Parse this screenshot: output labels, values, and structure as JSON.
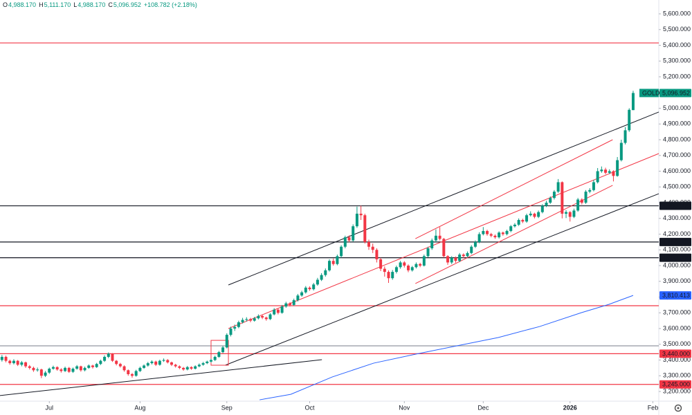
{
  "header": {
    "items": [
      {
        "key": "O",
        "value": "4,988.170"
      },
      {
        "key": "H",
        "value": "5,111.170"
      },
      {
        "key": "L",
        "value": "4,988.170"
      },
      {
        "key": "C",
        "value": "5,096.952"
      }
    ],
    "change": "+108.782 (+2.18%)"
  },
  "chart_data": {
    "type": "candlestick",
    "symbol": "GOLD",
    "up_color": "#089981",
    "down_color": "#f23645",
    "xlim": [
      -0.5,
      166.5
    ],
    "ylim": [
      3138.5,
      5687.9
    ],
    "xticks": [
      {
        "value": 12,
        "label": "Jul"
      },
      {
        "value": 35,
        "label": "Aug"
      },
      {
        "value": 57,
        "label": "Sep"
      },
      {
        "value": 78,
        "label": "Oct"
      },
      {
        "value": 102,
        "label": "Nov"
      },
      {
        "value": 122,
        "label": "Dec"
      },
      {
        "value": 144,
        "label": "2026"
      },
      {
        "value": 165,
        "label": "Feb"
      }
    ],
    "yticks": [
      {
        "value": 3200,
        "label": "3,200.000"
      },
      {
        "value": 3300,
        "label": "3,300.000"
      },
      {
        "value": 3400,
        "label": "3,400.000"
      },
      {
        "value": 3500,
        "label": "3,500.000"
      },
      {
        "value": 3600,
        "label": "3,600.000"
      },
      {
        "value": 3700,
        "label": "3,700.000"
      },
      {
        "value": 3800,
        "label": "3,800.000"
      },
      {
        "value": 3900,
        "label": "3,900.000"
      },
      {
        "value": 4000,
        "label": "4,000.000"
      },
      {
        "value": 4100,
        "label": "4,100.000"
      },
      {
        "value": 4200,
        "label": "4,200.000"
      },
      {
        "value": 4300,
        "label": "4,300.000"
      },
      {
        "value": 4400,
        "label": "4,400.000"
      },
      {
        "value": 4500,
        "label": "4,500.000"
      },
      {
        "value": 4600,
        "label": "4,600.000"
      },
      {
        "value": 4700,
        "label": "4,700.000"
      },
      {
        "value": 4800,
        "label": "4,800.000"
      },
      {
        "value": 4900,
        "label": "4,900.000"
      },
      {
        "value": 5000,
        "label": "5,000.000"
      },
      {
        "value": 5100,
        "label": "5,100.000"
      },
      {
        "value": 5200,
        "label": "5,200.000"
      },
      {
        "value": 5300,
        "label": "5,300.000"
      },
      {
        "value": 5400,
        "label": "5,400.000"
      },
      {
        "value": 5500,
        "label": "5,500.000"
      },
      {
        "value": 5600,
        "label": "5,600.000"
      }
    ],
    "ohlc": [
      [
        3400,
        3432,
        3390,
        3420
      ],
      [
        3420,
        3428,
        3385,
        3395
      ],
      [
        3395,
        3402,
        3370,
        3380
      ],
      [
        3380,
        3405,
        3372,
        3395
      ],
      [
        3395,
        3400,
        3362,
        3370
      ],
      [
        3370,
        3394,
        3360,
        3385
      ],
      [
        3385,
        3390,
        3350,
        3360
      ],
      [
        3360,
        3368,
        3340,
        3350
      ],
      [
        3350,
        3358,
        3325,
        3335
      ],
      [
        3335,
        3352,
        3326,
        3340
      ],
      [
        3340,
        3345,
        3285,
        3300
      ],
      [
        3300,
        3330,
        3292,
        3320
      ],
      [
        3320,
        3352,
        3312,
        3345
      ],
      [
        3345,
        3364,
        3338,
        3355
      ],
      [
        3355,
        3360,
        3332,
        3340
      ],
      [
        3340,
        3348,
        3320,
        3330
      ],
      [
        3330,
        3358,
        3324,
        3350
      ],
      [
        3350,
        3356,
        3318,
        3325
      ],
      [
        3325,
        3352,
        3318,
        3345
      ],
      [
        3345,
        3368,
        3338,
        3360
      ],
      [
        3360,
        3364,
        3326,
        3335
      ],
      [
        3335,
        3358,
        3328,
        3350
      ],
      [
        3350,
        3372,
        3344,
        3365
      ],
      [
        3365,
        3370,
        3346,
        3355
      ],
      [
        3355,
        3382,
        3350,
        3375
      ],
      [
        3375,
        3402,
        3368,
        3395
      ],
      [
        3395,
        3430,
        3388,
        3420
      ],
      [
        3420,
        3448,
        3412,
        3440
      ],
      [
        3440,
        3444,
        3388,
        3395
      ],
      [
        3395,
        3400,
        3366,
        3375
      ],
      [
        3375,
        3382,
        3352,
        3360
      ],
      [
        3360,
        3366,
        3326,
        3335
      ],
      [
        3335,
        3340,
        3300,
        3310
      ],
      [
        3310,
        3318,
        3288,
        3300
      ],
      [
        3300,
        3338,
        3294,
        3330
      ],
      [
        3330,
        3358,
        3324,
        3350
      ],
      [
        3350,
        3372,
        3344,
        3365
      ],
      [
        3365,
        3388,
        3358,
        3380
      ],
      [
        3380,
        3398,
        3372,
        3390
      ],
      [
        3390,
        3396,
        3362,
        3370
      ],
      [
        3370,
        3402,
        3364,
        3395
      ],
      [
        3395,
        3410,
        3388,
        3400
      ],
      [
        3400,
        3406,
        3378,
        3385
      ],
      [
        3385,
        3390,
        3362,
        3370
      ],
      [
        3370,
        3376,
        3352,
        3360
      ],
      [
        3360,
        3366,
        3342,
        3350
      ],
      [
        3350,
        3356,
        3332,
        3340
      ],
      [
        3340,
        3362,
        3334,
        3355
      ],
      [
        3355,
        3360,
        3338,
        3345
      ],
      [
        3345,
        3366,
        3340,
        3360
      ],
      [
        3360,
        3378,
        3354,
        3370
      ],
      [
        3370,
        3388,
        3364,
        3380
      ],
      [
        3380,
        3396,
        3374,
        3390
      ],
      [
        3390,
        3408,
        3384,
        3400
      ],
      [
        3400,
        3428,
        3394,
        3420
      ],
      [
        3420,
        3458,
        3414,
        3450
      ],
      [
        3450,
        3490,
        3444,
        3480
      ],
      [
        3480,
        3570,
        3474,
        3560
      ],
      [
        3560,
        3612,
        3550,
        3600
      ],
      [
        3600,
        3625,
        3585,
        3610
      ],
      [
        3610,
        3650,
        3602,
        3640
      ],
      [
        3640,
        3668,
        3632,
        3655
      ],
      [
        3655,
        3672,
        3645,
        3660
      ],
      [
        3660,
        3668,
        3640,
        3650
      ],
      [
        3650,
        3674,
        3644,
        3665
      ],
      [
        3665,
        3690,
        3658,
        3680
      ],
      [
        3680,
        3686,
        3660,
        3670
      ],
      [
        3670,
        3676,
        3650,
        3660
      ],
      [
        3660,
        3698,
        3654,
        3690
      ],
      [
        3690,
        3730,
        3684,
        3720
      ],
      [
        3720,
        3726,
        3690,
        3700
      ],
      [
        3700,
        3750,
        3694,
        3740
      ],
      [
        3740,
        3770,
        3732,
        3760
      ],
      [
        3760,
        3768,
        3740,
        3750
      ],
      [
        3750,
        3790,
        3744,
        3780
      ],
      [
        3780,
        3820,
        3772,
        3810
      ],
      [
        3810,
        3840,
        3802,
        3830
      ],
      [
        3830,
        3870,
        3822,
        3860
      ],
      [
        3860,
        3868,
        3840,
        3850
      ],
      [
        3850,
        3890,
        3842,
        3880
      ],
      [
        3880,
        3922,
        3872,
        3910
      ],
      [
        3910,
        3952,
        3902,
        3940
      ],
      [
        3940,
        3982,
        3930,
        3970
      ],
      [
        3970,
        4040,
        3962,
        4030
      ],
      [
        4030,
        4045,
        4000,
        4010
      ],
      [
        4010,
        4070,
        4002,
        4060
      ],
      [
        4060,
        4130,
        4050,
        4120
      ],
      [
        4120,
        4190,
        4110,
        4180
      ],
      [
        4180,
        4192,
        4148,
        4160
      ],
      [
        4160,
        4262,
        4152,
        4250
      ],
      [
        4250,
        4375,
        4240,
        4330
      ],
      [
        4330,
        4381,
        4290,
        4320
      ],
      [
        4320,
        4330,
        4140,
        4150
      ],
      [
        4150,
        4165,
        4100,
        4120
      ],
      [
        4120,
        4140,
        4080,
        4100
      ],
      [
        4100,
        4110,
        4020,
        4040
      ],
      [
        4040,
        4050,
        3965,
        3980
      ],
      [
        3980,
        3995,
        3930,
        3960
      ],
      [
        3960,
        3970,
        3890,
        3920
      ],
      [
        3920,
        3972,
        3910,
        3960
      ],
      [
        3960,
        4000,
        3950,
        3990
      ],
      [
        3990,
        4030,
        3980,
        4020
      ],
      [
        4020,
        4028,
        3988,
        4000
      ],
      [
        4000,
        4008,
        3958,
        3970
      ],
      [
        3970,
        3998,
        3962,
        3990
      ],
      [
        3990,
        4020,
        3982,
        4010
      ],
      [
        4010,
        4018,
        3990,
        4000
      ],
      [
        4000,
        4070,
        3994,
        4060
      ],
      [
        4060,
        4120,
        4052,
        4110
      ],
      [
        4110,
        4172,
        4100,
        4160
      ],
      [
        4160,
        4230,
        4150,
        4190
      ],
      [
        4190,
        4245,
        4160,
        4170
      ],
      [
        4170,
        4176,
        4050,
        4060
      ],
      [
        4060,
        4066,
        4005,
        4020
      ],
      [
        4020,
        4060,
        4010,
        4050
      ],
      [
        4050,
        4058,
        4018,
        4030
      ],
      [
        4030,
        4080,
        4022,
        4070
      ],
      [
        4070,
        4078,
        4048,
        4060
      ],
      [
        4060,
        4090,
        4052,
        4080
      ],
      [
        4080,
        4130,
        4072,
        4120
      ],
      [
        4120,
        4160,
        4112,
        4150
      ],
      [
        4150,
        4212,
        4142,
        4200
      ],
      [
        4200,
        4245,
        4192,
        4220
      ],
      [
        4220,
        4228,
        4190,
        4200
      ],
      [
        4200,
        4208,
        4180,
        4190
      ],
      [
        4190,
        4198,
        4170,
        4180
      ],
      [
        4180,
        4218,
        4172,
        4210
      ],
      [
        4210,
        4216,
        4190,
        4200
      ],
      [
        4200,
        4228,
        4192,
        4220
      ],
      [
        4220,
        4258,
        4212,
        4250
      ],
      [
        4250,
        4270,
        4242,
        4260
      ],
      [
        4260,
        4300,
        4252,
        4290
      ],
      [
        4290,
        4298,
        4270,
        4280
      ],
      [
        4280,
        4330,
        4272,
        4320
      ],
      [
        4320,
        4345,
        4312,
        4330
      ],
      [
        4330,
        4336,
        4300,
        4310
      ],
      [
        4310,
        4350,
        4302,
        4340
      ],
      [
        4340,
        4390,
        4332,
        4380
      ],
      [
        4380,
        4412,
        4372,
        4400
      ],
      [
        4400,
        4440,
        4392,
        4430
      ],
      [
        4430,
        4480,
        4420,
        4470
      ],
      [
        4470,
        4550,
        4462,
        4530
      ],
      [
        4530,
        4535,
        4300,
        4330
      ],
      [
        4330,
        4352,
        4302,
        4340
      ],
      [
        4340,
        4346,
        4280,
        4310
      ],
      [
        4310,
        4362,
        4302,
        4350
      ],
      [
        4350,
        4430,
        4342,
        4420
      ],
      [
        4420,
        4428,
        4388,
        4400
      ],
      [
        4400,
        4480,
        4392,
        4470
      ],
      [
        4470,
        4492,
        4460,
        4480
      ],
      [
        4480,
        4545,
        4472,
        4530
      ],
      [
        4530,
        4620,
        4522,
        4600
      ],
      [
        4600,
        4630,
        4590,
        4610
      ],
      [
        4610,
        4622,
        4580,
        4590
      ],
      [
        4590,
        4612,
        4582,
        4600
      ],
      [
        4600,
        4606,
        4535,
        4570
      ],
      [
        4570,
        4690,
        4565,
        4670
      ],
      [
        4670,
        4800,
        4662,
        4780
      ],
      [
        4780,
        4880,
        4770,
        4860
      ],
      [
        4860,
        5000,
        4850,
        4990
      ],
      [
        4988.17,
        5111.17,
        4988.17,
        5096.952
      ]
    ],
    "last_label": "5,096.952",
    "levels": [
      {
        "value": 5415,
        "color": "#f23645"
      },
      {
        "value": 4380,
        "label": "4,380.000",
        "color": "#131722"
      },
      {
        "value": 4150,
        "label": "4,150.000",
        "color": "#131722"
      },
      {
        "value": 4050,
        "label": "4,050.000",
        "color": "#131722"
      },
      {
        "value": 3745,
        "color": "#f23645"
      },
      {
        "value": 3490,
        "color": "#9598a1"
      },
      {
        "value": 3440,
        "label": "3,440.000",
        "color": "#f23645"
      },
      {
        "value": 3245,
        "label": "3,245.000",
        "color": "#f23645"
      }
    ],
    "trendlines": [
      {
        "x": [
          57.4,
          166.5
        ],
        "y": [
          3877,
          4976
        ],
        "color": "#131722"
      },
      {
        "x": [
          56.6,
          166.5
        ],
        "y": [
          3367,
          4457
        ],
        "color": "#131722"
      },
      {
        "x": [
          -0.5,
          81.1
        ],
        "y": [
          3174,
          3402
        ],
        "color": "#131722"
      },
      {
        "x": [
          57.4,
          166.5
        ],
        "y": [
          3600,
          4712
        ],
        "color": "#f23645"
      },
      {
        "x": [
          104.8,
          154.8
        ],
        "y": [
          4171,
          4800
        ],
        "color": "#f23645"
      },
      {
        "x": [
          104.8,
          154.8
        ],
        "y": [
          3886,
          4510
        ],
        "color": "#f23645"
      }
    ],
    "box": {
      "x": [
        53,
        57.4
      ],
      "y": [
        3367,
        3525
      ],
      "color": "#f23645"
    },
    "ma": {
      "color": "#2962ff",
      "x": [
        65.3,
        73.2,
        83.7,
        94.2,
        104.8,
        115.3,
        125.8,
        136.3,
        146.9,
        153.9,
        160
      ],
      "values": [
        3147,
        3182,
        3292,
        3380,
        3437,
        3490,
        3543,
        3613,
        3701,
        3754,
        3810.413
      ],
      "last_label": "3,810.413"
    }
  }
}
